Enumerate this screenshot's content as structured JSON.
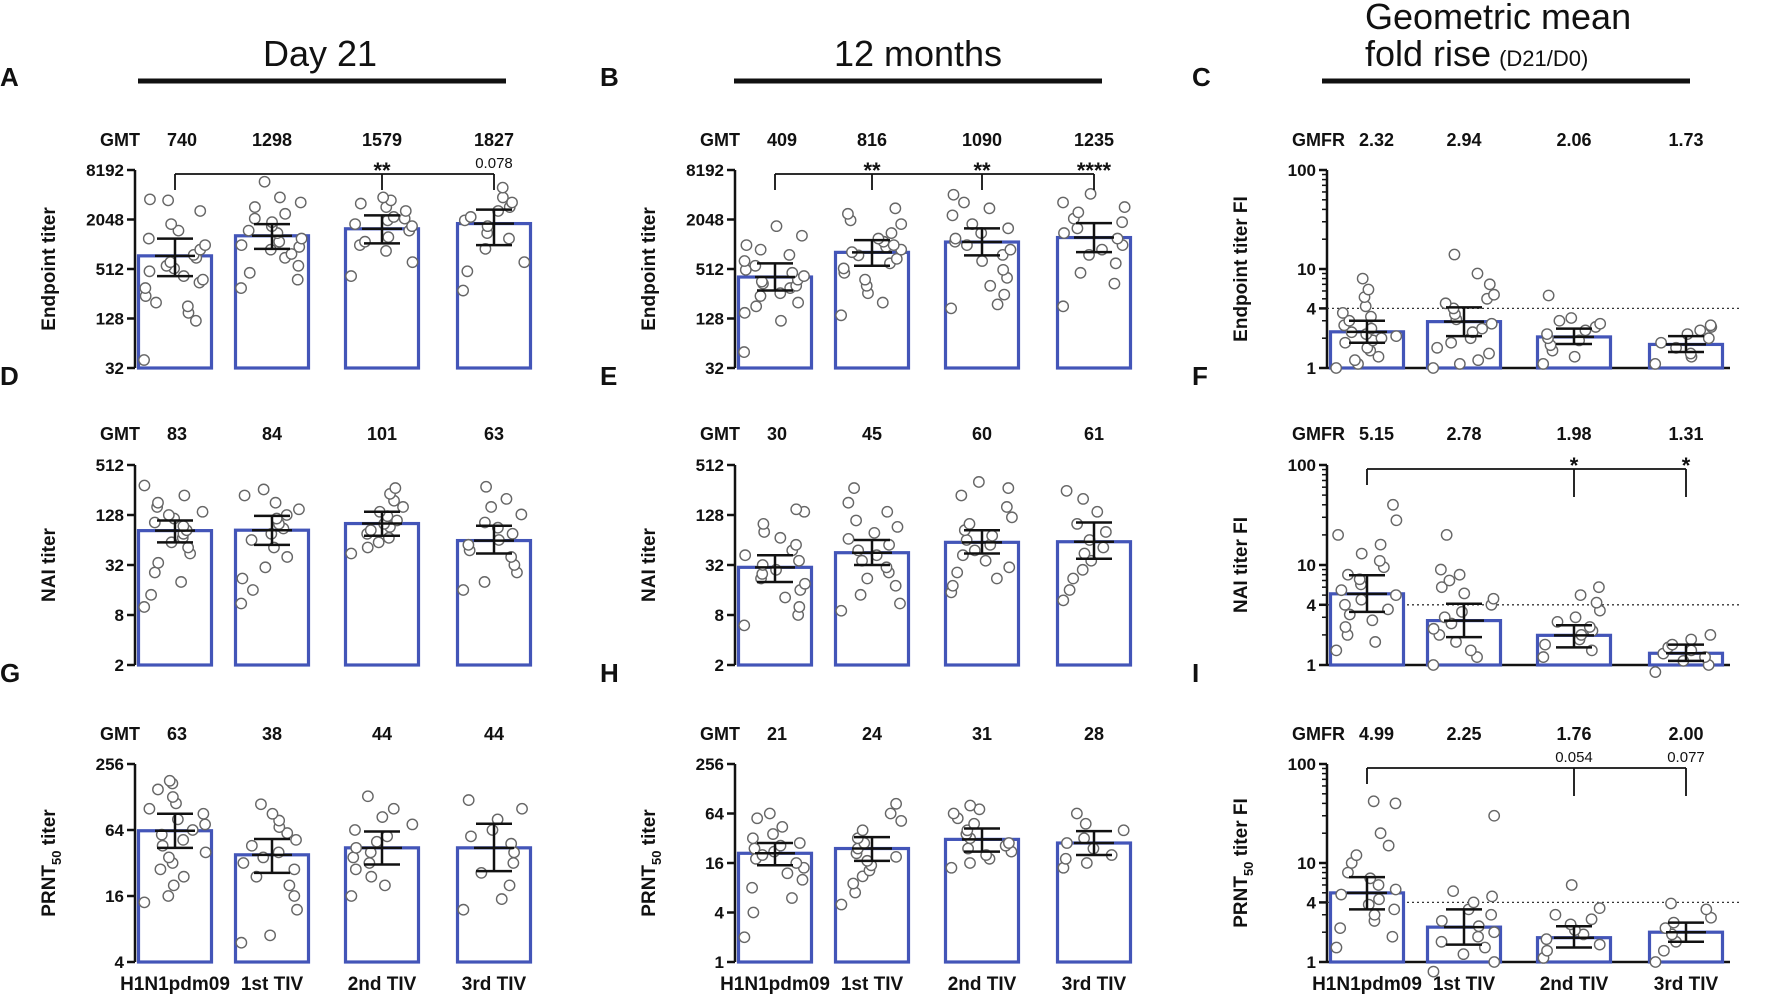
{
  "headers": {
    "col1": "Day 21",
    "col2": "12 months",
    "col3_line1": "Geometric mean",
    "col3_line2": "fold rise",
    "col3_suffix": "(D21/D0)"
  },
  "colors": {
    "bar": "#4355b8",
    "point_stroke": "#666666",
    "axis": "#111111"
  },
  "chart_data": [
    {
      "id": "A",
      "type": "bar",
      "ylabel": "Endpoint titer",
      "scale": "log2",
      "yticks": [
        32,
        128,
        512,
        2048,
        8192
      ],
      "ylim": [
        32,
        8192
      ],
      "categories": [
        "H1N1pdm09",
        "1st TIV",
        "2nd TIV",
        "3rd TIV"
      ],
      "stat_label": "GMT",
      "stats": [
        "740",
        "1298",
        "1579",
        "1827"
      ],
      "values": [
        740,
        1298,
        1579,
        1827
      ],
      "ci": [
        [
          420,
          1200
        ],
        [
          900,
          1800
        ],
        [
          1050,
          2300
        ],
        [
          1000,
          2700
        ]
      ],
      "points": [
        [
          40,
          120,
          150,
          180,
          200,
          240,
          300,
          350,
          380,
          420,
          480,
          520,
          560,
          620,
          700,
          760,
          880,
          1000,
          1200,
          1500,
          1800,
          2600,
          3500,
          3600
        ],
        [
          300,
          380,
          460,
          560,
          700,
          780,
          880,
          950,
          1000,
          1100,
          1200,
          1400,
          1500,
          1700,
          1900,
          2100,
          2400,
          2900,
          3300,
          3800,
          5900
        ],
        [
          420,
          620,
          850,
          1000,
          1100,
          1250,
          1500,
          1700,
          1800,
          2000,
          2100,
          2200,
          2600,
          2900,
          3200,
          3500,
          3800
        ],
        [
          280,
          480,
          620,
          900,
          1200,
          1400,
          1700,
          2000,
          2200,
          2600,
          2900,
          3300,
          3800,
          5000
        ]
      ],
      "comparisons": [
        {
          "from": 0,
          "to": 3,
          "marks": [
            {
              "cat": 2,
              "text": "**"
            },
            {
              "cat": 3,
              "text": "0.078"
            }
          ]
        }
      ]
    },
    {
      "id": "B",
      "type": "bar",
      "ylabel": "Endpoint titer",
      "scale": "log2",
      "yticks": [
        32,
        128,
        512,
        2048,
        8192
      ],
      "ylim": [
        32,
        8192
      ],
      "categories": [
        "H1N1pdm09",
        "1st TIV",
        "2nd TIV",
        "3rd TIV"
      ],
      "stat_label": "GMT",
      "stats": [
        "409",
        "816",
        "1090",
        "1235"
      ],
      "values": [
        409,
        816,
        1090,
        1235
      ],
      "ci": [
        [
          280,
          600
        ],
        [
          560,
          1150
        ],
        [
          750,
          1600
        ],
        [
          820,
          1850
        ]
      ],
      "points": [
        [
          50,
          120,
          150,
          180,
          200,
          240,
          260,
          300,
          320,
          340,
          360,
          380,
          420,
          460,
          500,
          560,
          640,
          760,
          880,
          1000,
          1300,
          1700
        ],
        [
          140,
          200,
          260,
          320,
          380,
          460,
          520,
          600,
          680,
          750,
          820,
          880,
          950,
          1000,
          1100,
          1200,
          1400,
          1800,
          2000,
          2400,
          2800
        ],
        [
          170,
          190,
          250,
          320,
          400,
          500,
          640,
          760,
          880,
          1000,
          1100,
          1200,
          1400,
          1600,
          1800,
          2300,
          2800,
          3300,
          4100
        ],
        [
          180,
          340,
          460,
          600,
          760,
          880,
          1000,
          1200,
          1400,
          1600,
          1900,
          2100,
          2500,
          2900,
          3300,
          4200
        ]
      ],
      "comparisons": [
        {
          "from": 0,
          "to": 3,
          "marks": [
            {
              "cat": 1,
              "text": "**"
            },
            {
              "cat": 2,
              "text": "**"
            },
            {
              "cat": 3,
              "text": "****"
            }
          ]
        }
      ]
    },
    {
      "id": "C",
      "type": "bar",
      "ylabel": "Endpoint titer FI",
      "scale": "log10",
      "yticks": [
        1,
        4,
        10,
        100
      ],
      "ylim": [
        1,
        100
      ],
      "dotted": 4,
      "categories": [
        "H1N1pdm09",
        "1st TIV",
        "2nd TIV",
        "3rd TIV"
      ],
      "stat_label": "GMFR",
      "stats": [
        "2.32",
        "2.94",
        "2.06",
        "1.73"
      ],
      "values": [
        2.32,
        2.94,
        2.06,
        1.73
      ],
      "ci": [
        [
          1.8,
          3.0
        ],
        [
          2.1,
          4.1
        ],
        [
          1.75,
          2.5
        ],
        [
          1.45,
          2.1
        ]
      ],
      "points": [
        [
          1.0,
          1.1,
          1.2,
          1.3,
          1.5,
          1.6,
          1.8,
          1.9,
          2.0,
          2.1,
          2.2,
          2.3,
          2.5,
          2.7,
          3.0,
          3.3,
          3.6,
          4.2,
          5.2,
          6.2,
          8.0
        ],
        [
          1.0,
          1.1,
          1.2,
          1.4,
          1.6,
          1.8,
          2.0,
          2.3,
          2.5,
          2.8,
          3.1,
          3.5,
          4.0,
          4.5,
          5.0,
          5.5,
          7.0,
          9.0,
          14.0
        ],
        [
          1.1,
          1.3,
          1.5,
          1.7,
          1.9,
          2.0,
          2.2,
          2.4,
          2.6,
          2.8,
          3.0,
          3.2,
          5.4
        ],
        [
          1.1,
          1.3,
          1.4,
          1.6,
          1.8,
          2.0,
          2.2,
          2.4,
          2.6,
          2.7
        ]
      ],
      "comparisons": []
    },
    {
      "id": "D",
      "type": "bar",
      "ylabel": "NAI titer",
      "scale": "log2",
      "yticks": [
        2,
        8,
        32,
        128,
        512
      ],
      "ylim": [
        2,
        512
      ],
      "categories": [
        "H1N1pdm09",
        "1st TIV",
        "2nd TIV",
        "3rd TIV"
      ],
      "stat_label": "GMT",
      "stats": [
        "83",
        "84",
        "101",
        "63"
      ],
      "values": [
        83,
        84,
        101,
        63
      ],
      "ci": [
        [
          60,
          110
        ],
        [
          56,
          125
        ],
        [
          72,
          140
        ],
        [
          44,
          95
        ]
      ],
      "points": [
        [
          10,
          14,
          20,
          26,
          34,
          44,
          52,
          60,
          68,
          76,
          84,
          94,
          104,
          116,
          128,
          140,
          160,
          180,
          220,
          290
        ],
        [
          11,
          16,
          22,
          30,
          40,
          52,
          64,
          76,
          88,
          100,
          116,
          128,
          150,
          180,
          220,
          260
        ],
        [
          44,
          52,
          60,
          68,
          76,
          84,
          92,
          100,
          110,
          124,
          140,
          160,
          190,
          230,
          270
        ],
        [
          16,
          20,
          26,
          32,
          40,
          48,
          56,
          64,
          76,
          90,
          104,
          130,
          160,
          200,
          280
        ]
      ],
      "comparisons": []
    },
    {
      "id": "E",
      "type": "bar",
      "ylabel": "NAI titer",
      "scale": "log2",
      "yticks": [
        2,
        8,
        32,
        128,
        512
      ],
      "ylim": [
        2,
        512
      ],
      "categories": [
        "H1N1pdm09",
        "1st TIV",
        "2nd TIV",
        "3rd TIV"
      ],
      "stat_label": "GMT",
      "stats": [
        "30",
        "45",
        "60",
        "61"
      ],
      "values": [
        30,
        45,
        60,
        61
      ],
      "ci": [
        [
          20,
          42
        ],
        [
          32,
          64
        ],
        [
          44,
          84
        ],
        [
          38,
          104
        ]
      ],
      "points": [
        [
          6,
          8,
          10,
          13,
          16,
          19,
          22,
          25,
          28,
          32,
          36,
          42,
          48,
          56,
          68,
          80,
          100,
          140,
          150
        ],
        [
          9,
          11,
          14,
          18,
          22,
          26,
          30,
          36,
          42,
          48,
          56,
          66,
          78,
          92,
          110,
          140,
          180,
          270
        ],
        [
          15,
          18,
          22,
          26,
          30,
          36,
          42,
          48,
          56,
          64,
          72,
          84,
          100,
          120,
          160,
          220,
          270,
          320
        ],
        [
          12,
          16,
          22,
          28,
          36,
          44,
          52,
          64,
          80,
          100,
          140,
          200,
          250
        ]
      ],
      "comparisons": []
    },
    {
      "id": "F",
      "type": "bar",
      "ylabel": "NAI titer FI",
      "scale": "log10",
      "yticks": [
        1,
        4,
        10,
        100
      ],
      "ylim": [
        1,
        100
      ],
      "dotted": 4,
      "categories": [
        "H1N1pdm09",
        "1st TIV",
        "2nd TIV",
        "3rd TIV"
      ],
      "stat_label": "GMFR",
      "stats": [
        "5.15",
        "2.78",
        "1.98",
        "1.31"
      ],
      "values": [
        5.15,
        2.78,
        1.98,
        1.31
      ],
      "ci": [
        [
          3.4,
          7.9
        ],
        [
          1.9,
          4.1
        ],
        [
          1.5,
          2.5
        ],
        [
          1.1,
          1.6
        ]
      ],
      "points": [
        [
          1.4,
          1.7,
          2.0,
          2.4,
          2.8,
          3.2,
          3.6,
          4.0,
          4.5,
          5.0,
          5.6,
          6.4,
          7.2,
          8.0,
          9.5,
          11.0,
          13.0,
          16.0,
          20.0,
          28.0,
          40.0
        ],
        [
          1.0,
          1.2,
          1.4,
          1.7,
          2.0,
          2.3,
          2.6,
          3.0,
          3.4,
          4.0,
          4.6,
          5.2,
          6.0,
          7.0,
          8.0,
          9.0,
          20.0
        ],
        [
          1.2,
          1.4,
          1.6,
          1.8,
          2.0,
          2.2,
          2.4,
          2.7,
          3.0,
          3.5,
          4.2,
          5.0,
          6.0
        ],
        [
          0.85,
          1.0,
          1.1,
          1.2,
          1.3,
          1.4,
          1.5,
          1.6,
          1.8,
          2.0
        ]
      ],
      "comparisons": [
        {
          "from": 0,
          "to": 3,
          "marks": [
            {
              "cat": 2,
              "text": "*"
            },
            {
              "cat": 3,
              "text": "*"
            }
          ]
        }
      ]
    },
    {
      "id": "G",
      "type": "bar",
      "ylabel": "PRNT",
      "ylabel_sub": "50",
      "ylabel_tail": " titer",
      "scale": "log2",
      "yticks": [
        4,
        16,
        64,
        256
      ],
      "ylim": [
        4,
        256
      ],
      "categories": [
        "H1N1pdm09",
        "1st TIV",
        "2nd TIV",
        "3rd TIV"
      ],
      "stat_label": "GMT",
      "stats": [
        "63",
        "38",
        "44",
        "44"
      ],
      "values": [
        63,
        38,
        44,
        44
      ],
      "ci": [
        [
          44,
          90
        ],
        [
          26,
          53
        ],
        [
          31,
          62
        ],
        [
          27,
          73
        ]
      ],
      "points": [
        [
          14,
          16,
          20,
          24,
          28,
          32,
          36,
          40,
          46,
          52,
          58,
          64,
          72,
          80,
          90,
          100,
          112,
          128,
          150,
          170,
          180
        ],
        [
          6,
          7,
          12,
          16,
          20,
          24,
          28,
          32,
          36,
          40,
          46,
          52,
          60,
          68,
          78,
          90,
          110
        ],
        [
          16,
          20,
          24,
          28,
          32,
          36,
          40,
          44,
          50,
          56,
          64,
          72,
          84,
          100,
          130
        ],
        [
          12,
          15,
          20,
          26,
          32,
          40,
          48,
          56,
          64,
          80,
          100,
          120
        ]
      ],
      "comparisons": []
    },
    {
      "id": "H",
      "type": "bar",
      "ylabel": "PRNT",
      "ylabel_sub": "50",
      "ylabel_tail": " titer",
      "scale": "log2",
      "yticks": [
        1,
        4,
        16,
        64,
        256
      ],
      "ylim": [
        1,
        256
      ],
      "categories": [
        "H1N1pdm09",
        "1st TIV",
        "2nd TIV",
        "3rd TIV"
      ],
      "stat_label": "GMT",
      "stats": [
        "21",
        "24",
        "31",
        "28"
      ],
      "values": [
        21,
        24,
        31,
        28
      ],
      "ci": [
        [
          15,
          28
        ],
        [
          17,
          33
        ],
        [
          22,
          42
        ],
        [
          20,
          39
        ]
      ],
      "points": [
        [
          2,
          4,
          6,
          8,
          10,
          12,
          14,
          16,
          18,
          20,
          22,
          24,
          26,
          28,
          32,
          36,
          44,
          56,
          64
        ],
        [
          5,
          7,
          9,
          11,
          13,
          15,
          17,
          19,
          21,
          24,
          28,
          32,
          40,
          52,
          64,
          84
        ],
        [
          14,
          16,
          18,
          20,
          22,
          24,
          26,
          28,
          32,
          36,
          40,
          48,
          56,
          64,
          72,
          80
        ],
        [
          14,
          16,
          18,
          20,
          24,
          28,
          32,
          40,
          48,
          64
        ]
      ],
      "comparisons": []
    },
    {
      "id": "I",
      "type": "bar",
      "ylabel": "PRNT",
      "ylabel_sub": "50",
      "ylabel_tail": " titer FI",
      "scale": "log10",
      "yticks": [
        1,
        4,
        10,
        100
      ],
      "ylim": [
        1,
        100
      ],
      "dotted": 4,
      "categories": [
        "H1N1pdm09",
        "1st TIV",
        "2nd TIV",
        "3rd TIV"
      ],
      "stat_label": "GMFR",
      "stats": [
        "4.99",
        "2.25",
        "1.76",
        "2.00"
      ],
      "values": [
        4.99,
        2.25,
        1.76,
        2.0
      ],
      "ci": [
        [
          3.4,
          7.2
        ],
        [
          1.5,
          3.4
        ],
        [
          1.4,
          2.3
        ],
        [
          1.6,
          2.5
        ]
      ],
      "points": [
        [
          1.4,
          1.8,
          2.2,
          2.6,
          3.0,
          3.4,
          3.8,
          4.3,
          4.8,
          5.4,
          6.0,
          7.0,
          8.0,
          10.0,
          12.0,
          15.0,
          20.0,
          40.0,
          42.0
        ],
        [
          0.8,
          1.0,
          1.2,
          1.4,
          1.6,
          1.8,
          2.0,
          2.3,
          2.6,
          3.0,
          3.4,
          4.0,
          4.6,
          5.2,
          30.0
        ],
        [
          1.1,
          1.3,
          1.5,
          1.7,
          1.9,
          2.1,
          2.4,
          2.7,
          3.0,
          3.5,
          6.0
        ],
        [
          1.0,
          1.3,
          1.6,
          1.9,
          2.2,
          2.5,
          2.8,
          3.4,
          3.9
        ]
      ],
      "comparisons": [
        {
          "from": 0,
          "to": 3,
          "marks": [
            {
              "cat": 2,
              "text": "0.054"
            },
            {
              "cat": 3,
              "text": "0.077"
            }
          ]
        }
      ]
    }
  ]
}
